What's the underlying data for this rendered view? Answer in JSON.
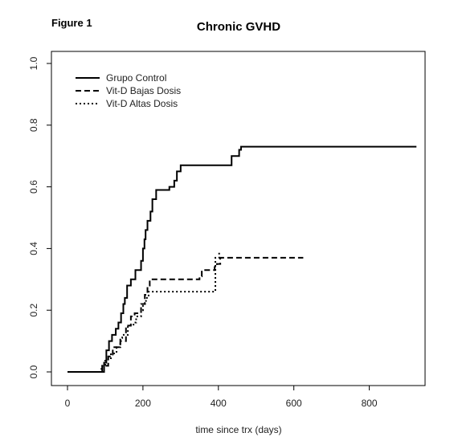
{
  "figure_label": "Figure 1",
  "chart_data": {
    "type": "line",
    "step": true,
    "title": "Chronic GVHD",
    "xlabel": "time since trx (days)",
    "ylabel": "",
    "xlim": [
      0,
      950
    ],
    "ylim": [
      0,
      1.0
    ],
    "xticks": [
      0,
      200,
      400,
      600,
      800
    ],
    "yticks": [
      0.0,
      0.2,
      0.4,
      0.6,
      0.8,
      1.0
    ],
    "xtick_labels": [
      "0",
      "200",
      "400",
      "600",
      "800"
    ],
    "ytick_labels": [
      "0.0",
      "0.2",
      "0.4",
      "0.6",
      "0.8",
      "1.0"
    ],
    "legend": {
      "position": "top-left",
      "box": false
    },
    "series": [
      {
        "name": "Grupo Control",
        "line_style": "solid",
        "color": "#000000",
        "x": [
          0,
          97,
          103,
          110,
          118,
          128,
          135,
          142,
          148,
          152,
          158,
          168,
          180,
          195,
          200,
          204,
          207,
          212,
          220,
          225,
          235,
          240,
          255,
          270,
          283,
          290,
          300,
          430,
          435,
          455,
          460,
          925
        ],
        "y": [
          0,
          0.03,
          0.07,
          0.1,
          0.12,
          0.14,
          0.16,
          0.19,
          0.22,
          0.24,
          0.28,
          0.3,
          0.33,
          0.36,
          0.4,
          0.43,
          0.46,
          0.49,
          0.52,
          0.56,
          0.59,
          0.59,
          0.59,
          0.6,
          0.62,
          0.65,
          0.67,
          0.67,
          0.7,
          0.72,
          0.73,
          0.73
        ]
      },
      {
        "name": "Vit-D Bajas Dosis",
        "line_style": "dashed",
        "color": "#000000",
        "x": [
          0,
          92,
          108,
          120,
          140,
          155,
          168,
          178,
          195,
          205,
          212,
          218,
          270,
          350,
          356,
          390,
          396,
          405,
          625
        ],
        "y": [
          0,
          0.02,
          0.05,
          0.08,
          0.1,
          0.15,
          0.18,
          0.19,
          0.22,
          0.25,
          0.28,
          0.3,
          0.3,
          0.31,
          0.33,
          0.34,
          0.35,
          0.37,
          0.37
        ]
      },
      {
        "name": "Vit-D Altas Dosis",
        "line_style": "dotted",
        "color": "#000000",
        "x": [
          0,
          90,
          100,
          115,
          130,
          140,
          145,
          160,
          175,
          182,
          195,
          200,
          208,
          215,
          385,
          392,
          402
        ],
        "y": [
          0,
          0.02,
          0.04,
          0.06,
          0.08,
          0.11,
          0.12,
          0.15,
          0.16,
          0.18,
          0.2,
          0.22,
          0.24,
          0.26,
          0.26,
          0.37,
          0.39
        ]
      }
    ]
  }
}
